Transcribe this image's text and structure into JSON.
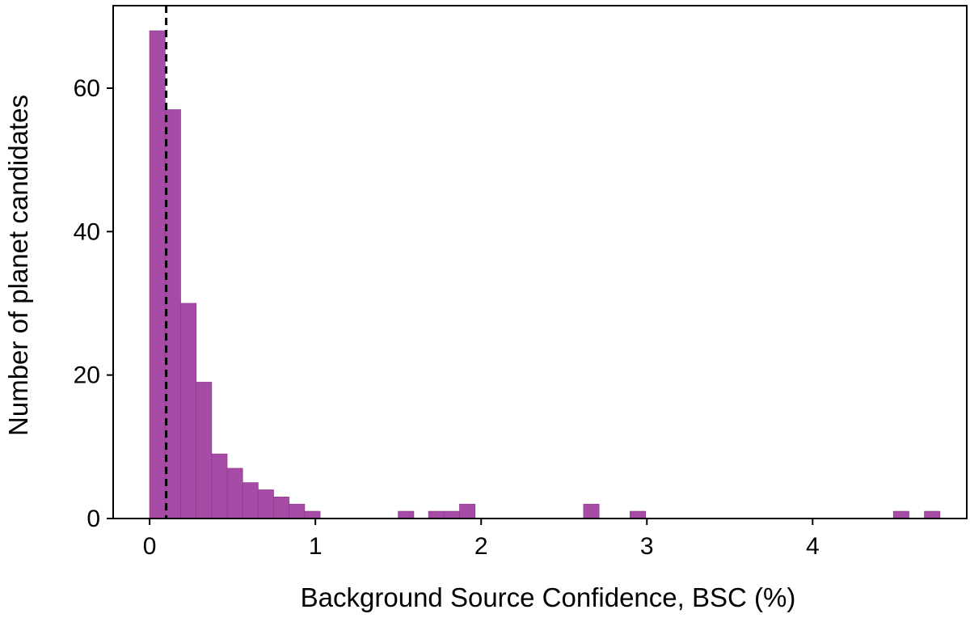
{
  "chart_data": {
    "type": "bar",
    "title": "",
    "xlabel": "Background Source Confidence, BSC (%)",
    "ylabel": "Number of planet candidates",
    "xlim": [
      -0.22,
      4.93
    ],
    "ylim": [
      0,
      71.5
    ],
    "xticks": [
      0,
      1,
      2,
      3,
      4
    ],
    "yticks": [
      0,
      20,
      40,
      60
    ],
    "bin_width": 0.0935,
    "bins": [
      {
        "x0": 0.0,
        "count": 68
      },
      {
        "x0": 0.0935,
        "count": 57
      },
      {
        "x0": 0.187,
        "count": 30
      },
      {
        "x0": 0.2805,
        "count": 19
      },
      {
        "x0": 0.374,
        "count": 9
      },
      {
        "x0": 0.4675,
        "count": 7
      },
      {
        "x0": 0.561,
        "count": 5
      },
      {
        "x0": 0.6545,
        "count": 4
      },
      {
        "x0": 0.748,
        "count": 3
      },
      {
        "x0": 0.8415,
        "count": 2
      },
      {
        "x0": 0.935,
        "count": 1
      },
      {
        "x0": 1.5,
        "count": 1
      },
      {
        "x0": 1.683,
        "count": 1
      },
      {
        "x0": 1.7765,
        "count": 1
      },
      {
        "x0": 1.87,
        "count": 2
      },
      {
        "x0": 2.618,
        "count": 2
      },
      {
        "x0": 2.8985,
        "count": 1
      },
      {
        "x0": 4.4875,
        "count": 1
      },
      {
        "x0": 4.6745,
        "count": 1
      }
    ],
    "threshold_line": {
      "x": 0.1,
      "style": "dashed"
    },
    "grid": false,
    "colors": {
      "bar": "#a64ca6",
      "bar_edge": "#8e3f8e",
      "threshold": "#000000"
    }
  }
}
